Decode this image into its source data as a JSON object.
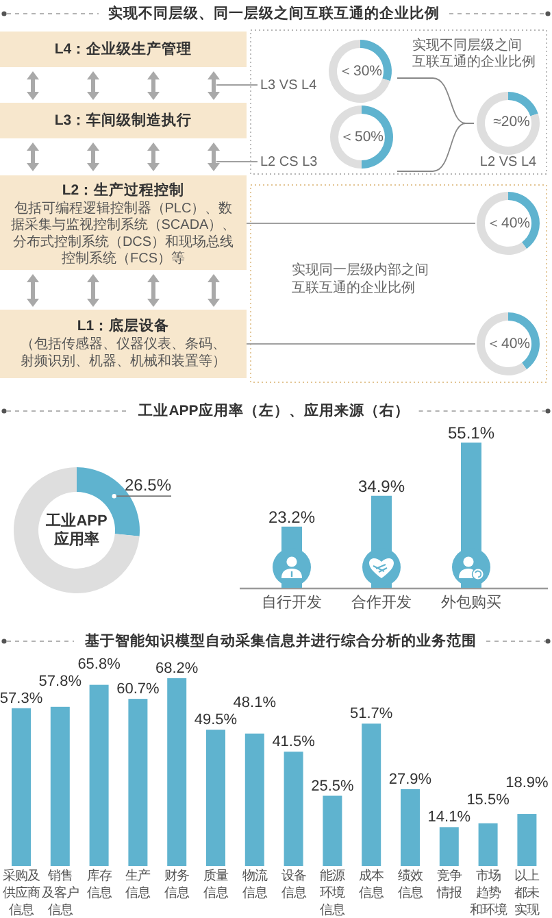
{
  "chart_data": [
    {
      "type": "other",
      "title": "实现不同层级、同一层级之间互联互通的企业比例",
      "annotations": [
        "L4：企业级生产管理",
        "L3：车间级制造执行",
        "L2：生产过程控制",
        "包括可编程逻辑控制器（PLC）、数据采集与监视控制系统（SCADA）、分布式控制系统（DCS）和现场总线控制系统（FCS）等",
        "L1：底层设备",
        "（包括传感器、仪器仪表、条码、射频识别、机器、机械和装置等）",
        "L3 VS L4",
        "L2 CS L3",
        "实现不同层级之间互联互通的企业比例",
        "L2 VS L4",
        "实现同一层级内部之间互联互通的企业比例"
      ]
    },
    {
      "type": "donut",
      "categories": [
        null,
        null
      ],
      "values": [
        30,
        70
      ],
      "colors": [
        "#5fb3cf",
        "#dedede"
      ],
      "value_labels": [
        "＜30%",
        null
      ]
    },
    {
      "type": "donut",
      "categories": [
        null,
        null
      ],
      "values": [
        50,
        50
      ],
      "colors": [
        "#5fb3cf",
        "#dedede"
      ],
      "value_labels": [
        "＜50%",
        null
      ]
    },
    {
      "type": "donut",
      "categories": [
        null,
        null
      ],
      "values": [
        20,
        80
      ],
      "colors": [
        "#5fb3cf",
        "#dedede"
      ],
      "value_labels": [
        "≈20%",
        null
      ]
    },
    {
      "type": "donut",
      "categories": [
        null,
        null
      ],
      "values": [
        40,
        60
      ],
      "colors": [
        "#5fb3cf",
        "#dedede"
      ],
      "value_labels": [
        "＜40%",
        null
      ]
    },
    {
      "type": "donut",
      "categories": [
        null,
        null
      ],
      "values": [
        40,
        60
      ],
      "colors": [
        "#5fb3cf",
        "#dedede"
      ],
      "value_labels": [
        "＜40%",
        null
      ]
    },
    {
      "type": "donut",
      "title": "工业APP应用率（左）、应用来源（右）",
      "categories": [
        null,
        null
      ],
      "values": [
        26.5,
        73.5
      ],
      "colors": [
        "#5fb3cf",
        "#dedede"
      ],
      "value_labels": [
        "26.5%",
        null
      ],
      "annotations": [
        "工业APP应用率"
      ]
    },
    {
      "type": "bar",
      "categories": [
        "自行开发",
        "合作开发",
        "外包购买"
      ],
      "values": [
        23.2,
        34.9,
        55.1
      ],
      "color": "#5fb3cf",
      "value_labels": [
        "23.2%",
        "34.9%",
        "55.1%"
      ]
    },
    {
      "type": "bar",
      "title": "基于智能知识模型自动采集信息并进行综合分析的业务范围",
      "categories": [
        "采购及供应商信息",
        "销售及客户信息",
        "库存信息",
        "生产信息",
        "财务信息",
        "质量信息",
        "物流信息",
        "设备信息",
        "能源环境信息",
        "成本信息",
        "绩效信息",
        "竞争情报",
        "市场趋势和环境",
        "以上都未实现"
      ],
      "values": [
        57.3,
        57.8,
        65.8,
        60.7,
        68.2,
        49.5,
        48.1,
        41.5,
        25.5,
        51.7,
        27.9,
        14.1,
        15.5,
        18.9
      ],
      "color": "#5fb3cf",
      "value_labels": [
        "57.3%",
        "57.8%",
        "65.8%",
        "60.7%",
        "68.2%",
        "49.5%",
        "48.1%",
        "41.5%",
        "25.5%",
        "51.7%",
        "27.9%",
        "14.1%",
        "15.5%",
        "18.9%"
      ]
    }
  ]
}
